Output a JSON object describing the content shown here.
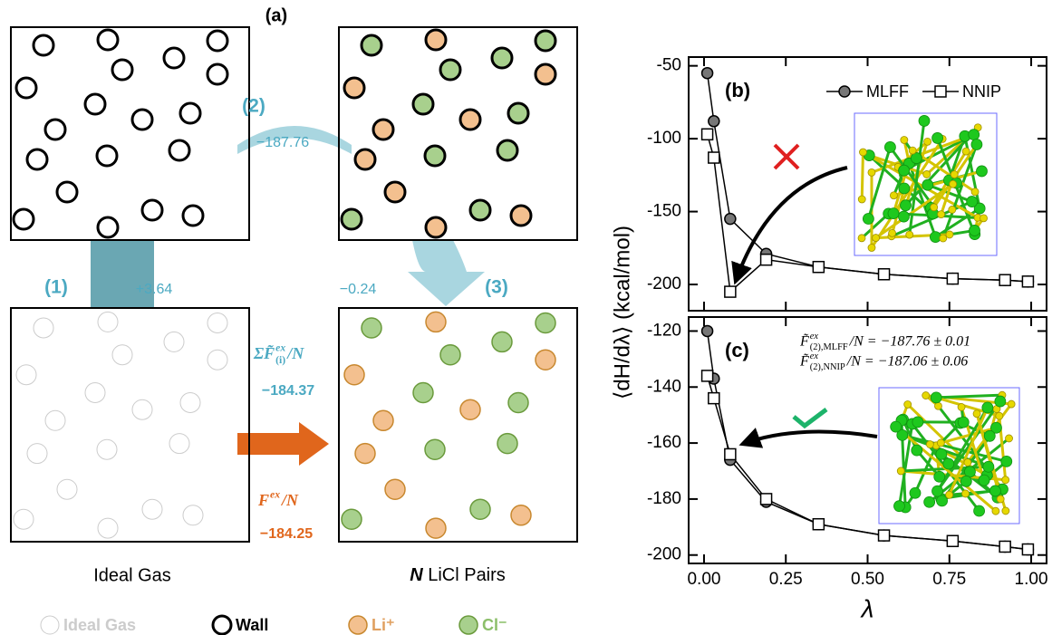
{
  "diagram": {
    "panel_label": "(a)",
    "steps": [
      {
        "label": "(1)",
        "value": "+3.64"
      },
      {
        "label": "(2)",
        "value": "−187.76"
      },
      {
        "label": "(3)",
        "value": "−0.24"
      }
    ],
    "sum": {
      "formula": {
        "main": "ΣF̃",
        "sup": "ex",
        "sub": "(i)",
        "tail": " /N"
      },
      "value": "−184.37"
    },
    "result": {
      "formula": {
        "main": "F",
        "sup": "ex",
        "tail": "/N"
      },
      "value": "−184.25"
    },
    "boxes": {
      "ideal": "Ideal Gas",
      "target": {
        "main": "N",
        "tail": " LiCl Pairs"
      }
    },
    "legend": [
      "Ideal Gas",
      "Wall",
      "Li⁺",
      "Cl⁻"
    ]
  },
  "chart_data": [
    {
      "type": "line",
      "panel_label": "(b)",
      "ylabel": "⟨dH/dλ⟩ (kcal/mol)",
      "x": [
        0.01,
        0.03,
        0.08,
        0.19,
        0.35,
        0.55,
        0.76,
        0.92,
        0.99
      ],
      "series": [
        {
          "name": "MLFF",
          "color": "#000000",
          "marker": "circle",
          "values": [
            -55,
            -88,
            -155,
            -179,
            -188,
            -193,
            -196,
            -197,
            -198
          ]
        },
        {
          "name": "NNIP",
          "color": "#000000",
          "marker": "square",
          "values": [
            -97,
            -113,
            -205,
            -183,
            -188,
            -193,
            -196,
            -197,
            -198
          ]
        }
      ],
      "xlim": [
        -0.047,
        1.047
      ],
      "ylim": [
        -218,
        -44
      ],
      "yticks": [
        -50,
        -100,
        -150,
        -200
      ]
    },
    {
      "type": "line",
      "panel_label": "(c)",
      "xlabel": "λ",
      "x": [
        0.01,
        0.03,
        0.08,
        0.19,
        0.35,
        0.55,
        0.76,
        0.92,
        0.99
      ],
      "series": [
        {
          "color": "#000000",
          "marker": "circle",
          "values": [
            -120,
            -137,
            -166,
            -181,
            -189,
            -193,
            -195,
            -197,
            -198
          ]
        },
        {
          "color": "#000000",
          "marker": "square",
          "values": [
            -136,
            -144,
            -164,
            -180,
            -189,
            -193,
            -195,
            -197,
            -198
          ]
        }
      ],
      "annotations": [
        {
          "main": "F̃",
          "sup": "ex",
          "sub": "(2),MLFF",
          "tail": "/N = −187.76 ± 0.01"
        },
        {
          "main": "F̃",
          "sup": "ex",
          "sub": "(2),NNIP",
          "tail": "/N = −187.06 ± 0.06"
        }
      ],
      "xlim": [
        -0.047,
        1.047
      ],
      "ylim": [
        -203,
        -115
      ],
      "yticks": [
        -120,
        -140,
        -160,
        -180,
        -200
      ],
      "xticks": [
        {
          "value": 0,
          "label": "0.00"
        },
        {
          "value": 0.25,
          "label": "0.25"
        },
        {
          "value": 0.5,
          "label": "0.50"
        },
        {
          "value": 0.75,
          "label": "0.75"
        },
        {
          "value": 1,
          "label": "1.00"
        }
      ]
    }
  ]
}
